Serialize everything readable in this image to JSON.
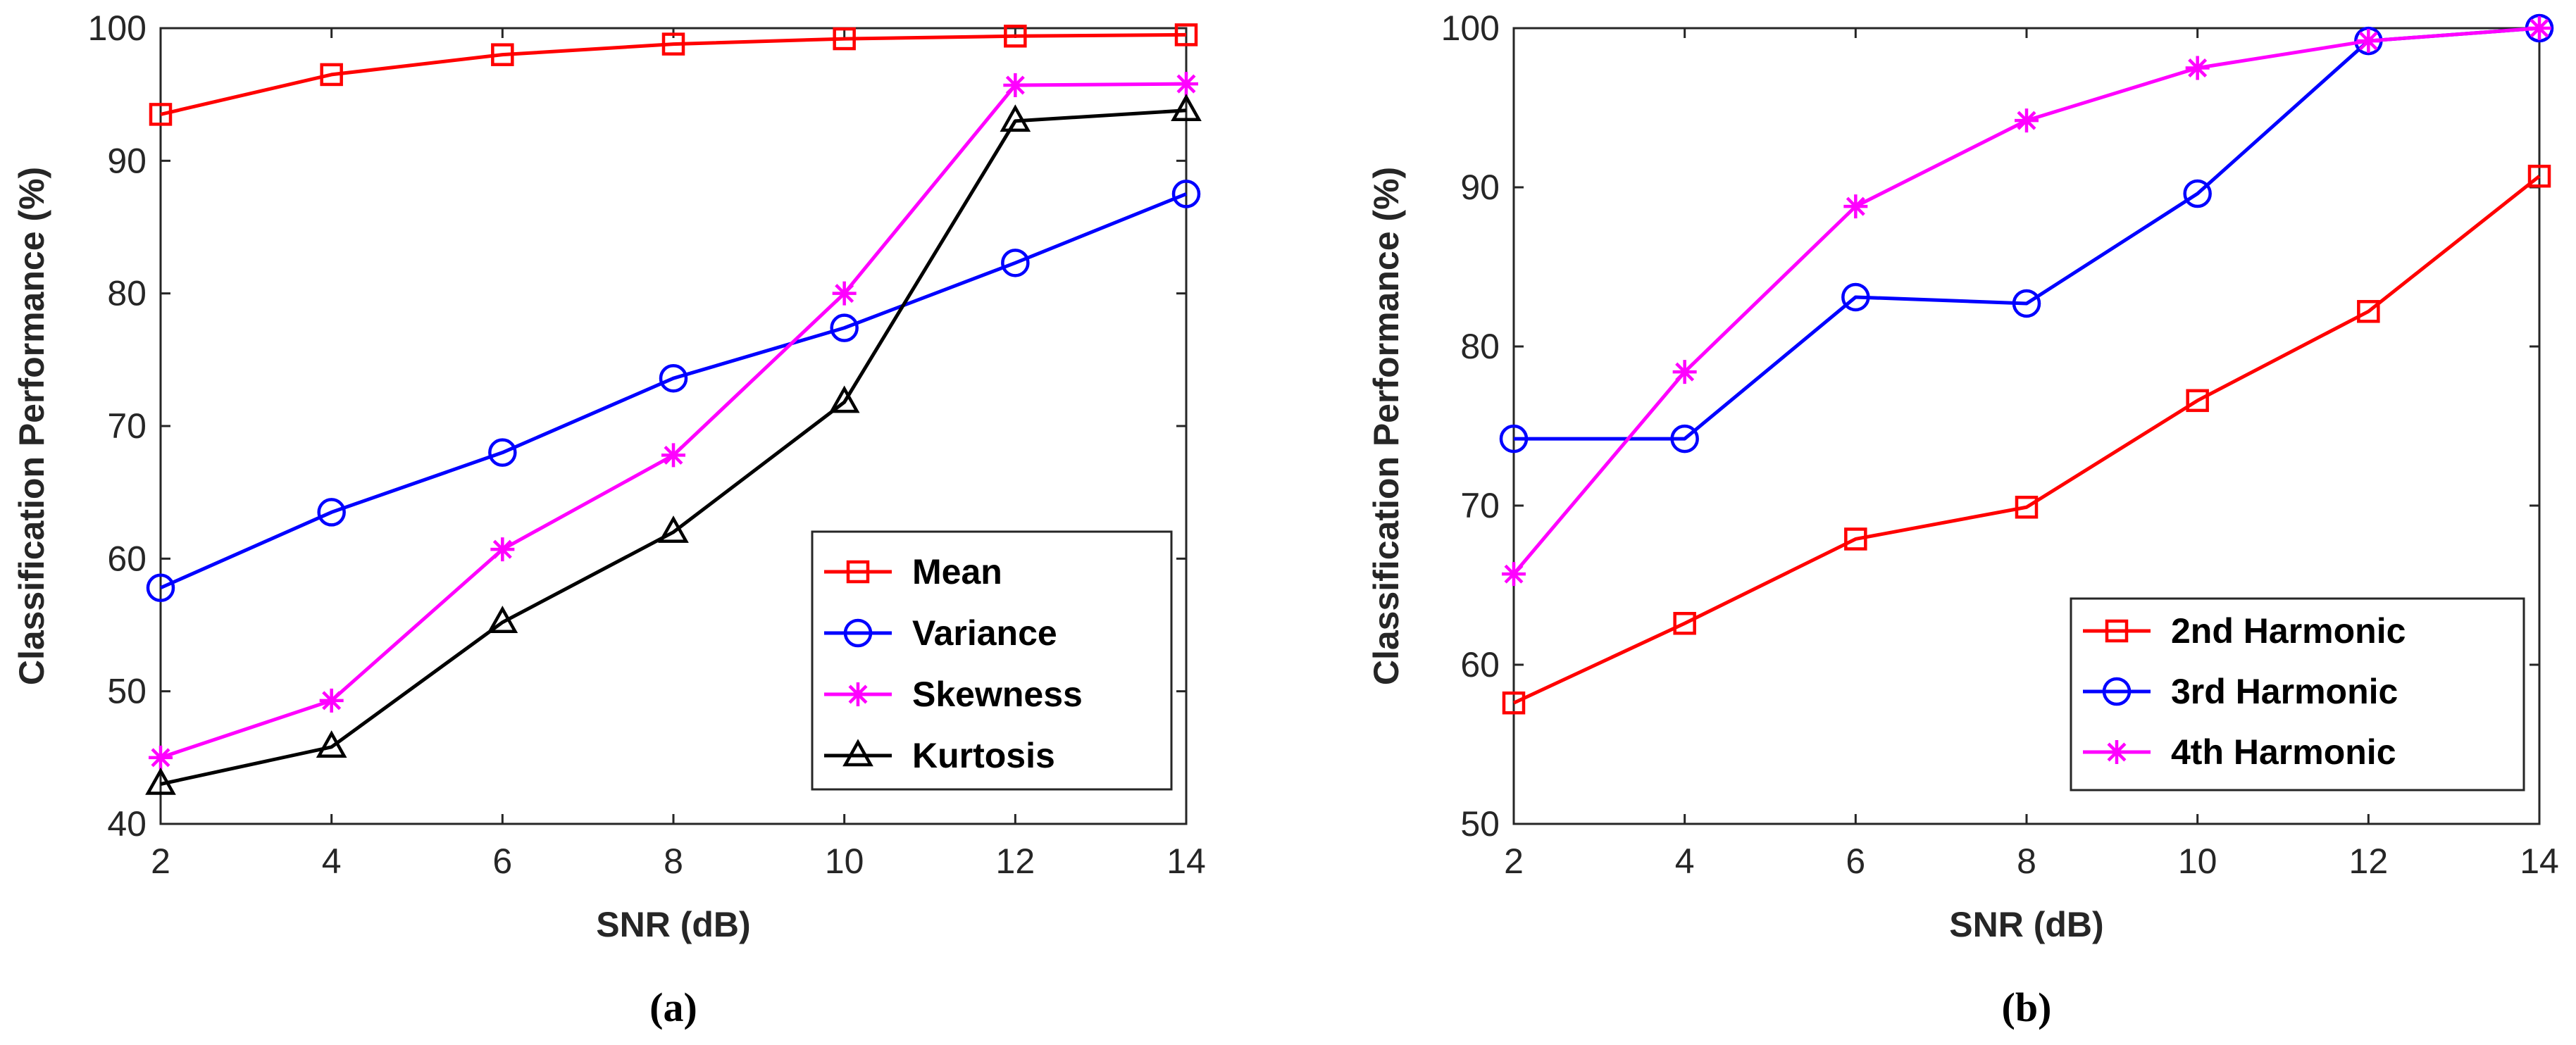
{
  "chart_data": [
    {
      "type": "line",
      "panel_label": "(a)",
      "xlabel": "SNR (dB)",
      "ylabel": "Classification Performance (%)",
      "x": [
        2,
        4,
        6,
        8,
        10,
        12,
        14
      ],
      "xlim": [
        2,
        14
      ],
      "ylim": [
        40,
        100
      ],
      "xticks": [
        "2",
        "4",
        "6",
        "8",
        "10",
        "12",
        "14"
      ],
      "yticks": [
        "40",
        "50",
        "60",
        "70",
        "80",
        "90",
        "100"
      ],
      "grid": false,
      "legend_position": "bottom-right",
      "series": [
        {
          "name": "Mean",
          "color": "#ff0000",
          "marker": "square",
          "values": [
            93.5,
            96.5,
            98.0,
            98.8,
            99.2,
            99.4,
            99.5
          ]
        },
        {
          "name": "Variance",
          "color": "#0000ff",
          "marker": "circle",
          "values": [
            57.8,
            63.5,
            68.0,
            73.6,
            77.4,
            82.3,
            87.5
          ]
        },
        {
          "name": "Skewness",
          "color": "#ff00ff",
          "marker": "asterisk",
          "values": [
            45.0,
            49.3,
            60.7,
            67.8,
            80.0,
            95.7,
            95.8
          ]
        },
        {
          "name": "Kurtosis",
          "color": "#000000",
          "marker": "triangle",
          "values": [
            43.0,
            45.8,
            55.2,
            62.0,
            71.8,
            93.0,
            93.8
          ]
        }
      ]
    },
    {
      "type": "line",
      "panel_label": "(b)",
      "xlabel": "SNR (dB)",
      "ylabel": "Classification Performance (%)",
      "x": [
        2,
        4,
        6,
        8,
        10,
        12,
        14
      ],
      "xlim": [
        2,
        14
      ],
      "ylim": [
        50,
        100
      ],
      "xticks": [
        "2",
        "4",
        "6",
        "8",
        "10",
        "12",
        "14"
      ],
      "yticks": [
        "50",
        "60",
        "70",
        "80",
        "90",
        "100"
      ],
      "grid": false,
      "legend_position": "bottom-right",
      "series": [
        {
          "name": "2nd Harmonic",
          "color": "#ff0000",
          "marker": "square",
          "values": [
            57.6,
            62.6,
            67.9,
            69.9,
            76.6,
            82.2,
            90.7
          ]
        },
        {
          "name": "3rd Harmonic",
          "color": "#0000ff",
          "marker": "circle",
          "values": [
            74.2,
            74.2,
            83.1,
            82.7,
            89.6,
            99.2,
            100.0
          ]
        },
        {
          "name": "4th Harmonic",
          "color": "#ff00ff",
          "marker": "asterisk",
          "values": [
            65.7,
            78.4,
            88.8,
            94.2,
            97.5,
            99.2,
            100.0
          ]
        }
      ]
    }
  ]
}
